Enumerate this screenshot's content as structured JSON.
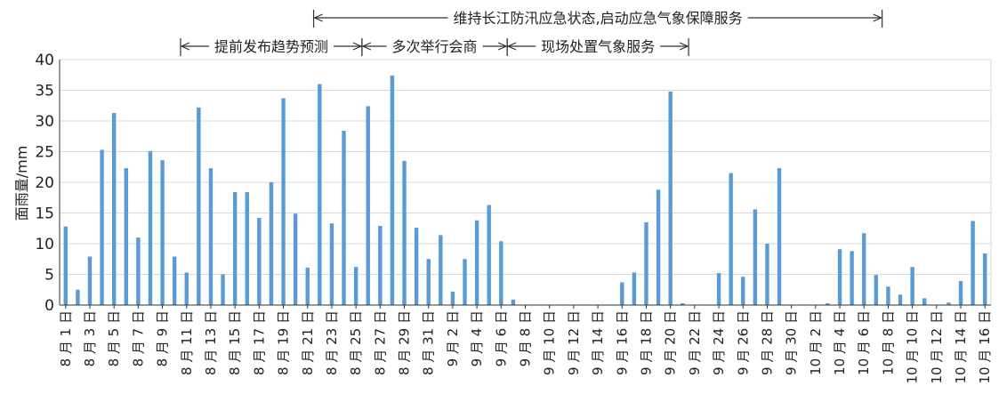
{
  "chart_data": {
    "type": "bar",
    "title": "",
    "xlabel": "",
    "ylabel": "面雨量/mm",
    "ylim": [
      0,
      40
    ],
    "yticks": [
      0,
      5,
      10,
      15,
      20,
      25,
      30,
      35,
      40
    ],
    "grid": true,
    "bar_color": "#5b9bd5",
    "categories": [
      "8月1日",
      "8月2日",
      "8月3日",
      "8月4日",
      "8月5日",
      "8月6日",
      "8月7日",
      "8月8日",
      "8月9日",
      "8月10日",
      "8月11日",
      "8月12日",
      "8月13日",
      "8月14日",
      "8月15日",
      "8月16日",
      "8月17日",
      "8月18日",
      "8月19日",
      "8月20日",
      "8月21日",
      "8月22日",
      "8月23日",
      "8月24日",
      "8月25日",
      "8月26日",
      "8月27日",
      "8月28日",
      "8月29日",
      "8月30日",
      "8月31日",
      "9月1日",
      "9月2日",
      "9月3日",
      "9月4日",
      "9月5日",
      "9月6日",
      "9月7日",
      "9月8日",
      "9月9日",
      "9月10日",
      "9月11日",
      "9月12日",
      "9月13日",
      "9月14日",
      "9月15日",
      "9月16日",
      "9月17日",
      "9月18日",
      "9月19日",
      "9月20日",
      "9月21日",
      "9月22日",
      "9月23日",
      "9月24日",
      "9月25日",
      "9月26日",
      "9月27日",
      "9月28日",
      "9月29日",
      "9月30日",
      "10月1日",
      "10月2日",
      "10月3日",
      "10月4日",
      "10月5日",
      "10月6日",
      "10月7日",
      "10月8日",
      "10月9日",
      "10月10日",
      "10月11日",
      "10月12日",
      "10月13日",
      "10月14日",
      "10月15日",
      "10月16日"
    ],
    "tick_labels": [
      "8 月 1 日",
      "8 月 3 日",
      "8 月 5 日",
      "8 月 7 日",
      "8 月 9 日",
      "8 月 11 日",
      "8 月 13 日",
      "8 月 15 日",
      "8 月 17 日",
      "8 月 19 日",
      "8 月 21 日",
      "8 月 23 日",
      "8 月 25 日",
      "8 月 27 日",
      "8 月 29 日",
      "8 月 31 日",
      "9 月 2 日",
      "9 月 4 日",
      "9 月 6 日",
      "9 月 8 日",
      "9 月 10 日",
      "9 月 12 日",
      "9 月 14 日",
      "9 月 16 日",
      "9 月 18 日",
      "9 月 20 日",
      "9 月 22 日",
      "9 月 24 日",
      "9 月 26 日",
      "9 月 28 日",
      "9 月 30 日",
      "10 月 2 日",
      "10 月 4 日",
      "10 月 6 日",
      "10 月 8 日",
      "10 月 10 日",
      "10 月 12 日",
      "10 月 14 日",
      "10 月 16 日"
    ],
    "values": [
      12.8,
      2.5,
      7.9,
      25.3,
      31.3,
      22.3,
      11.0,
      25.1,
      23.6,
      7.9,
      5.3,
      32.2,
      22.3,
      5.0,
      18.4,
      18.4,
      14.2,
      20.0,
      33.7,
      14.9,
      6.1,
      36.0,
      13.3,
      28.4,
      6.2,
      32.4,
      12.9,
      37.4,
      23.5,
      12.6,
      7.5,
      11.4,
      2.2,
      7.5,
      13.8,
      16.3,
      10.4,
      0.9,
      0,
      0,
      0,
      0,
      0,
      0,
      0,
      0,
      3.7,
      5.3,
      13.5,
      18.8,
      34.8,
      0.3,
      0,
      0,
      5.2,
      21.5,
      4.6,
      15.6,
      10.0,
      22.3,
      0,
      0,
      0,
      0.3,
      9.1,
      8.8,
      11.7,
      4.9,
      3.0,
      1.7,
      6.2,
      1.1,
      0,
      0.4,
      3.9,
      13.7,
      8.4
    ],
    "annotations": [
      {
        "text": "维持长江防汛应急状态,启动应急气象保障服务",
        "from": "8月22日",
        "to": "10月8日"
      },
      {
        "text": "提前发布趋势预测",
        "from": "8月11日",
        "to": "8月26日"
      },
      {
        "text": "多次举行会商",
        "from": "8月26日",
        "to": "9月7日"
      },
      {
        "text": "现场处置气象服务",
        "from": "9月7日",
        "to": "9月22日"
      }
    ]
  }
}
